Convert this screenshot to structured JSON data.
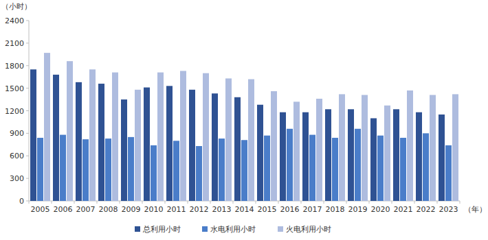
{
  "chart_data": {
    "type": "bar",
    "y_label": "（小时）",
    "x_label": "（年）",
    "categories": [
      "2005",
      "2006",
      "2007",
      "2008",
      "2009",
      "2010",
      "2011",
      "2012",
      "2013",
      "2014",
      "2015",
      "2016",
      "2017",
      "2018",
      "2019",
      "2020",
      "2021",
      "2022",
      "2023"
    ],
    "series": [
      {
        "name": "总利用小时",
        "color": "#2f5293",
        "values": [
          1750,
          1680,
          1580,
          1560,
          1350,
          1510,
          1530,
          1480,
          1430,
          1380,
          1280,
          1180,
          1180,
          1220,
          1220,
          1100,
          1220,
          1180,
          1150
        ]
      },
      {
        "name": "水电利用小时",
        "color": "#4a7dc9",
        "values": [
          840,
          880,
          820,
          830,
          850,
          740,
          800,
          730,
          830,
          810,
          870,
          960,
          880,
          840,
          960,
          870,
          840,
          900,
          740
        ]
      },
      {
        "name": "火电利用小时",
        "color": "#aebcdf",
        "values": [
          1970,
          1860,
          1750,
          1710,
          1480,
          1710,
          1730,
          1700,
          1630,
          1620,
          1460,
          1320,
          1360,
          1420,
          1410,
          1270,
          1470,
          1410,
          1420
        ]
      }
    ],
    "ylim": [
      0,
      2400
    ],
    "yticks": [
      0,
      300,
      600,
      900,
      1200,
      1500,
      1800,
      2100,
      2400
    ],
    "grid": false,
    "legend": "bottom"
  }
}
